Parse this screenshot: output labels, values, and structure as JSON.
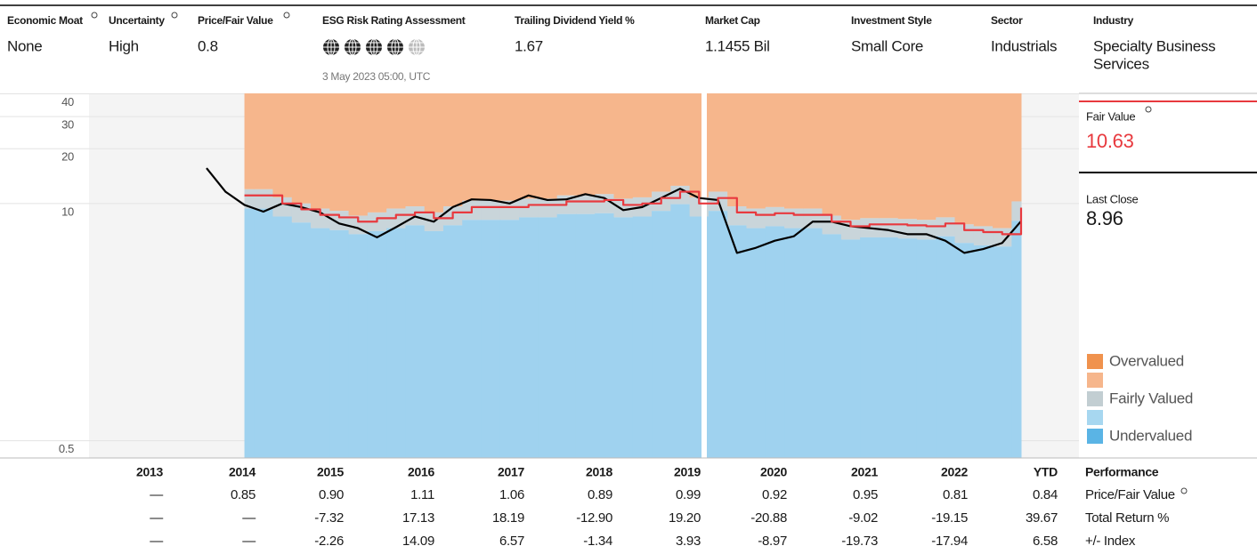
{
  "header": {
    "fields": [
      {
        "label": "Economic Moat",
        "value": "None"
      },
      {
        "label": "Uncertainty",
        "value": "High"
      },
      {
        "label": "Price/Fair Value",
        "value": "0.8"
      },
      {
        "label": "ESG Risk Rating Assessment",
        "value": "3 May 2023 05:00, UTC",
        "globes_filled": 4,
        "globes_total": 5
      },
      {
        "label": "Trailing Dividend Yield %",
        "value": "1.67"
      },
      {
        "label": "Market Cap",
        "value": "1.1455 Bil"
      },
      {
        "label": "Investment Style",
        "value": "Small Core"
      },
      {
        "label": "Sector",
        "value": "Industrials"
      },
      {
        "label": "Industry",
        "value": [
          "Specialty Business",
          "Services"
        ]
      }
    ]
  },
  "chart_data": {
    "type": "line",
    "log_scale": true,
    "ylim": [
      0.45,
      45
    ],
    "yticks": [
      0.5,
      10,
      20,
      30,
      40
    ],
    "grid": true,
    "series": [
      {
        "name": "Last Close",
        "color": "#000000",
        "values": [
          17.5,
          13.0,
          11.0,
          10.1,
          11.2,
          10.7,
          10.0,
          8.7,
          8.2,
          7.3,
          8.3,
          9.5,
          8.9,
          10.7,
          11.8,
          11.7,
          11.2,
          12.4,
          11.7,
          11.8,
          12.6,
          12.0,
          10.3,
          10.7,
          12.0,
          13.5,
          12.0,
          11.7,
          6.0,
          6.4,
          7.0,
          7.4,
          8.9,
          8.9,
          8.4,
          8.2,
          8.0,
          7.6,
          7.6,
          7.0,
          6.0,
          6.3,
          6.8,
          8.96
        ]
      },
      {
        "name": "Fair Value",
        "color": "#e8393e",
        "values": [
          null,
          null,
          12.4,
          12.4,
          11.2,
          10.4,
          9.7,
          9.4,
          8.9,
          9.3,
          9.7,
          10.0,
          9.3,
          10.0,
          10.7,
          10.7,
          10.7,
          11.0,
          11.0,
          11.5,
          11.5,
          11.7,
          11.0,
          11.2,
          12.0,
          13.0,
          11.2,
          12.0,
          10.0,
          9.7,
          9.9,
          9.7,
          9.7,
          8.9,
          8.4,
          8.6,
          8.6,
          8.5,
          8.4,
          8.7,
          8.0,
          7.8,
          7.6,
          10.63
        ]
      }
    ],
    "bands": {
      "undervalued_upper": [
        null,
        null,
        10.5,
        10.5,
        9.5,
        8.8,
        8.2,
        8.0,
        7.6,
        7.9,
        8.2,
        8.5,
        7.9,
        8.5,
        9.1,
        9.1,
        9.1,
        9.4,
        9.4,
        9.8,
        9.8,
        9.9,
        9.4,
        9.5,
        10.2,
        11.1,
        9.5,
        10.2,
        8.5,
        8.2,
        8.4,
        8.2,
        8.2,
        7.6,
        7.1,
        7.3,
        7.3,
        7.2,
        7.1,
        7.4,
        6.8,
        6.6,
        6.5,
        9.0
      ],
      "fairly_upper": [
        null,
        null,
        13.4,
        13.4,
        12.1,
        11.2,
        10.5,
        10.2,
        9.6,
        10.0,
        10.5,
        10.8,
        10.0,
        10.8,
        11.6,
        11.6,
        11.6,
        11.9,
        11.9,
        12.4,
        12.4,
        12.6,
        11.9,
        12.1,
        13.0,
        14.0,
        12.1,
        13.0,
        10.8,
        10.5,
        10.7,
        10.5,
        10.5,
        9.6,
        9.1,
        9.3,
        9.3,
        9.2,
        9.1,
        9.4,
        8.6,
        8.4,
        8.2,
        11.5
      ],
      "colors": {
        "undervalued": "#9fd2ef",
        "fairly": "#c9d5da",
        "overvalued": "#f6b68c"
      }
    },
    "legend": [
      {
        "label": "Overvalued",
        "color": "#f0924d"
      },
      {
        "label": null,
        "color": "#f6b68c"
      },
      {
        "label": "Fairly Valued",
        "color": "#c2ced2"
      },
      {
        "label": null,
        "color": "#a7d7f0"
      },
      {
        "label": "Undervalued",
        "color": "#5ab4e5"
      }
    ],
    "fair_value": {
      "label": "Fair Value",
      "value": 10.63
    },
    "last_close": {
      "label": "Last Close",
      "value": 8.96
    }
  },
  "table": {
    "header": [
      "2013",
      "2014",
      "2015",
      "2016",
      "2017",
      "2018",
      "2019",
      "2020",
      "2021",
      "2022",
      "YTD",
      "Performance"
    ],
    "rows": [
      [
        "—",
        "0.85",
        "0.90",
        "1.11",
        "1.06",
        "0.89",
        "0.99",
        "0.92",
        "0.95",
        "0.81",
        "0.84",
        "Price/Fair Value"
      ],
      [
        "—",
        "—",
        "-7.32",
        "17.13",
        "18.19",
        "-12.90",
        "19.20",
        "-20.88",
        "-9.02",
        "-19.15",
        "39.67",
        "Total Return %"
      ],
      [
        "—",
        "—",
        "-2.26",
        "14.09",
        "6.57",
        "-1.34",
        "3.93",
        "-8.97",
        "-19.73",
        "-17.94",
        "6.58",
        "+/- Index"
      ]
    ]
  }
}
